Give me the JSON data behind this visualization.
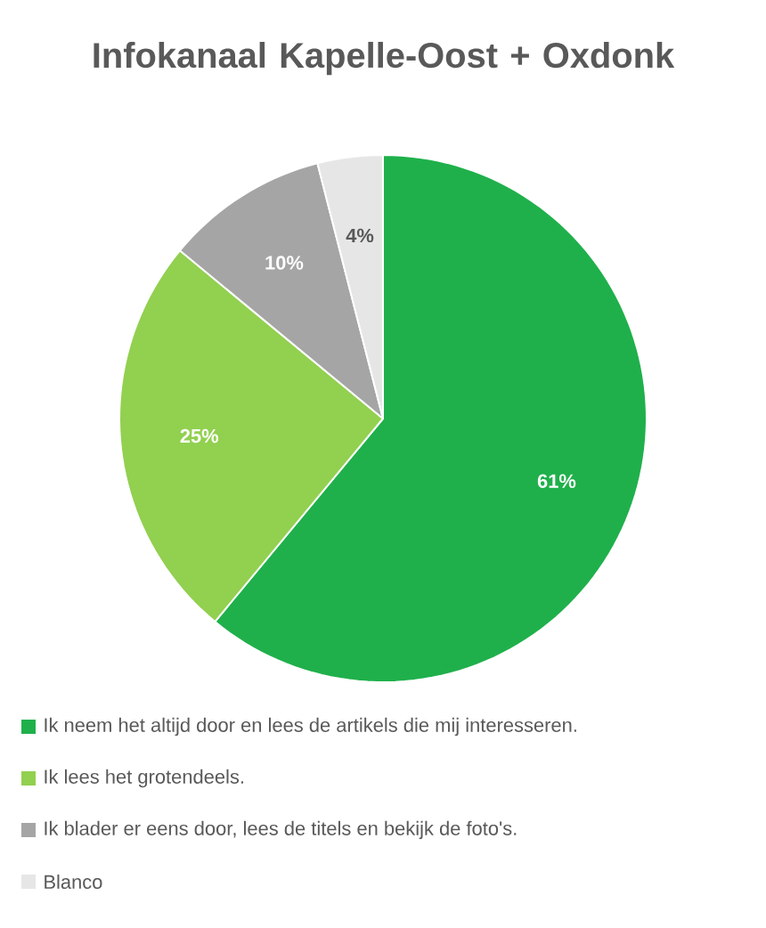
{
  "chart_data": {
    "type": "pie",
    "title": "Infokanaal Kapelle-Oost + Oxdonk",
    "categories": [
      "Ik neem het altijd door en lees de artikels die mij interesseren.",
      "Ik lees het grotendeels.",
      "Ik blader er eens door, lees de titels en bekijk de foto's.",
      "Blanco"
    ],
    "values": [
      61,
      25,
      10,
      4
    ],
    "value_labels": [
      "61%",
      "25%",
      "10%",
      "4%"
    ],
    "colors": [
      "#1fb04b",
      "#92d050",
      "#a5a5a5",
      "#e7e6e6"
    ],
    "legend": "bottom"
  }
}
